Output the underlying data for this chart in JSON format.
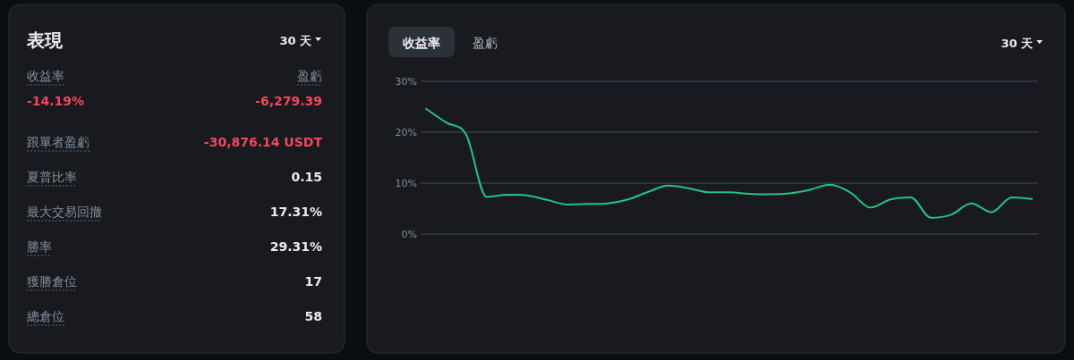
{
  "chart_data": [
    {
      "type": "other",
      "title": "表現",
      "annotations": [
        "30 天"
      ],
      "categories": [
        "收益率",
        "盈虧",
        "跟單者盈虧",
        "夏普比率",
        "最大交易回撤",
        "勝率",
        "獲勝倉位",
        "總倉位"
      ],
      "value_labels": [
        "-14.19%",
        "-6,279.39",
        "-30,876.14 USDT",
        "0.15",
        "17.31%",
        "29.31%",
        "17",
        "58"
      ]
    },
    {
      "type": "line",
      "annotations": [
        "收益率",
        "盈虧",
        "30 天"
      ],
      "categories": [
        null,
        null,
        null,
        null,
        null,
        null,
        null,
        null,
        null,
        null,
        null,
        null,
        null,
        null,
        null,
        null,
        null,
        null,
        null,
        null,
        null,
        null,
        null,
        null,
        null,
        null,
        null,
        null,
        null,
        null,
        null
      ],
      "series": [
        {
          "color": "#1fc583",
          "values": [
            24.6,
            21.9,
            19.4,
            7.3,
            7.7,
            7.6,
            6.7,
            5.8,
            5.9,
            6.0,
            6.8,
            8.3,
            9.5,
            9.0,
            8.2,
            8.2,
            7.9,
            7.8,
            8.0,
            8.7,
            9.7,
            8.2,
            5.2,
            6.8,
            7.2,
            3.2,
            3.8,
            6.0,
            4.3,
            7.2,
            6.9
          ]
        }
      ],
      "ylim": [
        0,
        30
      ],
      "yticks": [
        {
          "value": 0,
          "label": "0%"
        },
        {
          "value": 10,
          "label": "10%"
        },
        {
          "value": 20,
          "label": "20%"
        },
        {
          "value": 30,
          "label": "30%"
        }
      ],
      "grid": "y",
      "tick_labels": "y"
    }
  ]
}
